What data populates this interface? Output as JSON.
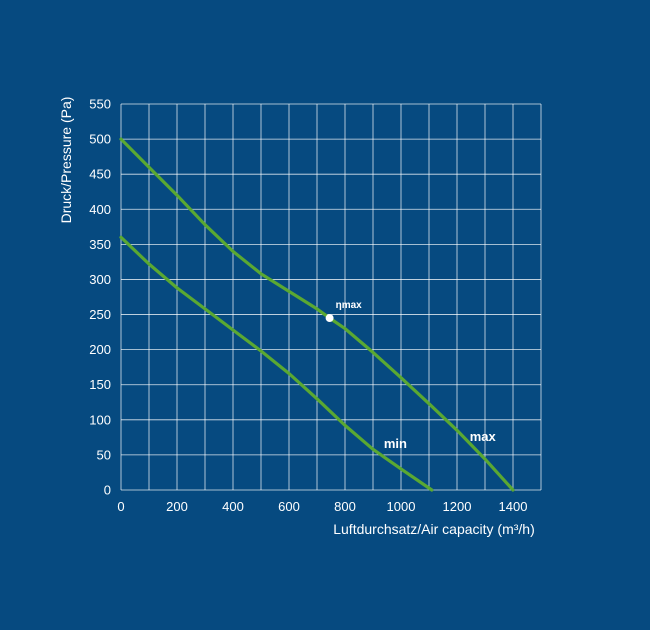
{
  "chart_data": {
    "type": "line",
    "title": "",
    "xlabel": "Luftdurchsatz/Air capacity (m³/h)",
    "ylabel": "Druck/Pressure (Pa)",
    "xlim": [
      0,
      1500
    ],
    "ylim": [
      0,
      550
    ],
    "x_ticks": [
      0,
      200,
      400,
      600,
      800,
      1000,
      1200,
      1400
    ],
    "y_ticks": [
      0,
      50,
      100,
      150,
      200,
      250,
      300,
      350,
      400,
      450,
      500,
      550
    ],
    "grid": true,
    "colors": {
      "background": "#064a80",
      "grid": "#ffffff",
      "curve": "#5aa832",
      "text": "#ffffff"
    },
    "series": [
      {
        "name": "max",
        "x": [
          0,
          100,
          200,
          300,
          400,
          500,
          600,
          700,
          745,
          800,
          900,
          1000,
          1100,
          1200,
          1300,
          1400
        ],
        "y": [
          500,
          460,
          420,
          378,
          340,
          308,
          283,
          258,
          245,
          230,
          196,
          160,
          123,
          85,
          44,
          0
        ]
      },
      {
        "name": "min",
        "x": [
          0,
          100,
          200,
          300,
          400,
          500,
          600,
          700,
          800,
          900,
          1000,
          1110
        ],
        "y": [
          360,
          322,
          288,
          258,
          228,
          198,
          166,
          130,
          92,
          58,
          30,
          0
        ]
      }
    ],
    "annotations": [
      {
        "label": "ηmax",
        "x": 745,
        "y": 245
      }
    ]
  }
}
